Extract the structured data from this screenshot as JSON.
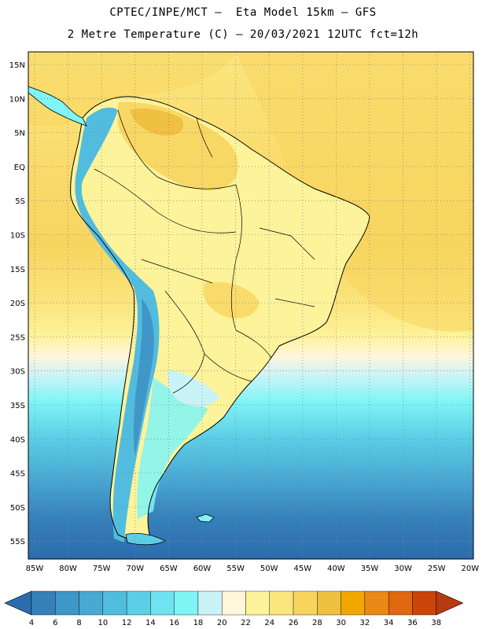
{
  "header": {
    "line1": "CPTEC/INPE/MCT –  Eta Model 15km – GFS",
    "line2": "2 Metre Temperature (C) – 20/03/2021 12UTC fct=12h"
  },
  "map": {
    "lat_labels": [
      "15N",
      "10N",
      "5N",
      "EQ",
      "5S",
      "10S",
      "15S",
      "20S",
      "25S",
      "30S",
      "35S",
      "40S",
      "45S",
      "50S",
      "55S"
    ],
    "lon_labels": [
      "85W",
      "80W",
      "75W",
      "70W",
      "65W",
      "60W",
      "55W",
      "50W",
      "45W",
      "40W",
      "35W",
      "30W",
      "25W",
      "20W"
    ],
    "gridlines": "dotted"
  },
  "colorbar": {
    "ticks": [
      "4",
      "6",
      "8",
      "10",
      "12",
      "14",
      "16",
      "18",
      "20",
      "22",
      "24",
      "26",
      "28",
      "30",
      "32",
      "34",
      "36",
      "38"
    ],
    "colors": [
      "#2b6cad",
      "#3680ba",
      "#3f96c8",
      "#49a9d3",
      "#52bcdf",
      "#5ccfe6",
      "#6fe3f0",
      "#7ff5f6",
      "#c9f3f7",
      "#fff6dc",
      "#fdf39a",
      "#fbe57e",
      "#f7d55f",
      "#f0c043",
      "#f0a800",
      "#e88a15",
      "#e06810",
      "#c9450a",
      "#b73a10"
    ]
  }
}
